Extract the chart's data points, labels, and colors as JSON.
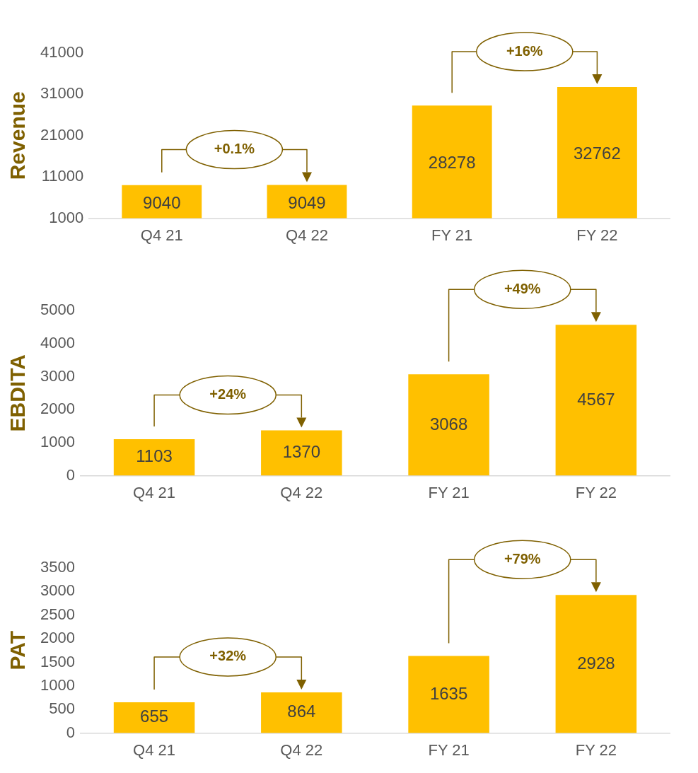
{
  "chart_data": [
    {
      "type": "bar",
      "ylabel": "Revenue",
      "categories": [
        "Q4 21",
        "Q4 22",
        "FY 21",
        "FY 22"
      ],
      "values": [
        9040,
        9049,
        28278,
        32762
      ],
      "color": "#ffc000",
      "ylim": [
        1000,
        41000
      ],
      "yticks": [
        1000,
        11000,
        21000,
        31000,
        41000
      ],
      "data_labels": true,
      "annotations": [
        "+0.1%",
        "+16%"
      ]
    },
    {
      "type": "bar",
      "ylabel": "EBDITA",
      "categories": [
        "Q4 21",
        "Q4 22",
        "FY 21",
        "FY 22"
      ],
      "values": [
        1103,
        1370,
        3068,
        4567
      ],
      "color": "#ffc000",
      "ylim": [
        0,
        5000
      ],
      "yticks": [
        0,
        1000,
        2000,
        3000,
        4000,
        5000
      ],
      "data_labels": true,
      "annotations": [
        "+24%",
        "+49%"
      ]
    },
    {
      "type": "bar",
      "ylabel": "PAT",
      "categories": [
        "Q4 21",
        "Q4 22",
        "FY 21",
        "FY 22"
      ],
      "values": [
        655,
        864,
        1635,
        2928
      ],
      "color": "#ffc000",
      "ylim": [
        0,
        3500
      ],
      "yticks": [
        0,
        500,
        1000,
        1500,
        2000,
        2500,
        3000,
        3500
      ],
      "data_labels": true,
      "annotations": [
        "+32%",
        "+79%"
      ]
    }
  ]
}
